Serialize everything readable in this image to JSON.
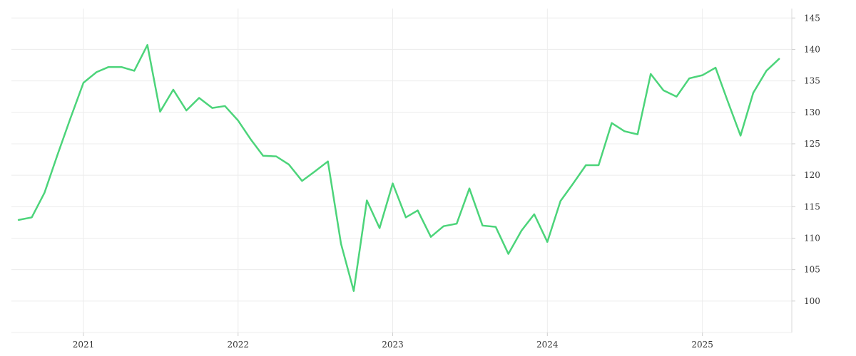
{
  "chart_data": {
    "type": "line",
    "title": "",
    "xlabel": "",
    "ylabel": "",
    "x_axis": {
      "type": "date",
      "range": [
        "2020-07-15",
        "2025-07-31"
      ],
      "ticks": [
        "2021-01-01",
        "2022-01-01",
        "2023-01-01",
        "2024-01-01",
        "2025-01-01"
      ],
      "tick_labels": [
        "2021",
        "2022",
        "2023",
        "2024",
        "2025"
      ]
    },
    "y_axis": {
      "position": "right",
      "range": [
        95,
        146.5
      ],
      "ticks": [
        100,
        105,
        110,
        115,
        120,
        125,
        130,
        135,
        140,
        145
      ],
      "tick_labels": [
        "100",
        "105",
        "110",
        "115",
        "120",
        "125",
        "130",
        "135",
        "140",
        "145"
      ]
    },
    "grid": true,
    "legend": "none",
    "series": [
      {
        "color": "#4cd47a",
        "x": [
          "2020-08",
          "2020-09",
          "2020-10",
          "2020-11",
          "2020-12",
          "2021-01",
          "2021-02",
          "2021-03",
          "2021-04",
          "2021-05",
          "2021-06",
          "2021-07",
          "2021-08",
          "2021-09",
          "2021-10",
          "2021-11",
          "2021-12",
          "2022-01",
          "2022-02",
          "2022-03",
          "2022-04",
          "2022-05",
          "2022-06",
          "2022-07",
          "2022-08",
          "2022-09",
          "2022-10",
          "2022-11",
          "2022-12",
          "2023-01",
          "2023-02",
          "2023-03",
          "2023-04",
          "2023-05",
          "2023-06",
          "2023-07",
          "2023-08",
          "2023-09",
          "2023-10",
          "2023-11",
          "2023-12",
          "2024-01",
          "2024-02",
          "2024-03",
          "2024-04",
          "2024-05",
          "2024-06",
          "2024-07",
          "2024-08",
          "2024-09",
          "2024-10",
          "2024-11",
          "2024-12",
          "2025-01",
          "2025-02",
          "2025-03",
          "2025-04",
          "2025-05",
          "2025-06",
          "2025-07"
        ],
        "y": [
          112.9,
          113.3,
          117.2,
          123.3,
          129.0,
          134.7,
          136.4,
          137.2,
          137.2,
          136.6,
          140.7,
          130.1,
          133.6,
          130.3,
          132.3,
          130.7,
          131.0,
          128.7,
          125.6,
          123.1,
          123.0,
          121.7,
          119.1,
          120.6,
          122.2,
          109.1,
          101.6,
          116.0,
          111.6,
          118.7,
          113.3,
          114.4,
          110.2,
          111.9,
          112.3,
          117.9,
          112.0,
          111.8,
          107.5,
          111.2,
          113.8,
          109.4,
          115.9,
          118.6,
          121.6,
          121.6,
          128.3,
          127.0,
          126.5,
          136.1,
          133.5,
          132.5,
          135.4,
          135.9,
          137.1,
          131.9,
          126.3,
          133.1,
          136.6,
          138.5
        ]
      }
    ]
  }
}
